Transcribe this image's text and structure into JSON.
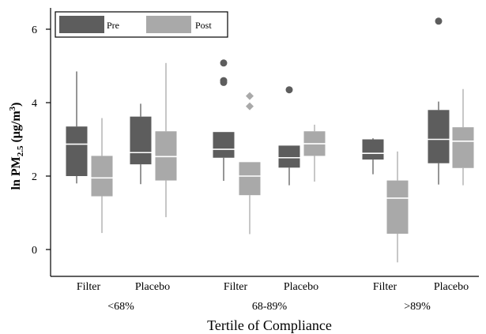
{
  "chart_data": {
    "type": "boxplot",
    "ylabel_main": "ln PM",
    "ylabel_sub": "2.5",
    "ylabel_unit_pre": " (μg/m",
    "ylabel_unit_sup": "3",
    "ylabel_unit_post": ")",
    "xlabel": "Tertile of Compliance",
    "ylim": [
      -0.7,
      6.5
    ],
    "yticks": [
      0,
      2,
      4,
      6
    ],
    "legend": {
      "position": "top-left",
      "entries": [
        {
          "name": "Pre",
          "color": "#5d5d5d"
        },
        {
          "name": "Post",
          "color": "#a9a9a9"
        }
      ]
    },
    "groups": [
      {
        "label": "<68%",
        "treatments": [
          {
            "label": "Filter",
            "pre": {
              "whisker_low": 1.8,
              "q1": 2.0,
              "median": 2.87,
              "q3": 3.35,
              "whisker_high": 4.85,
              "outliers": []
            },
            "post": {
              "whisker_low": 0.45,
              "q1": 1.45,
              "median": 1.95,
              "q3": 2.55,
              "whisker_high": 3.58,
              "outliers": []
            }
          },
          {
            "label": "Placebo",
            "pre": {
              "whisker_low": 1.78,
              "q1": 2.32,
              "median": 2.64,
              "q3": 3.62,
              "whisker_high": 3.97,
              "outliers": []
            },
            "post": {
              "whisker_low": 0.88,
              "q1": 1.88,
              "median": 2.53,
              "q3": 3.22,
              "whisker_high": 5.08,
              "outliers": []
            }
          }
        ]
      },
      {
        "label": "68-89%",
        "treatments": [
          {
            "label": "Filter",
            "pre": {
              "whisker_low": 1.87,
              "q1": 2.5,
              "median": 2.73,
              "q3": 3.2,
              "whisker_high": 3.2,
              "outliers": [
                5.08,
                4.6,
                4.55
              ]
            },
            "post": {
              "whisker_low": 0.42,
              "q1": 1.48,
              "median": 2.0,
              "q3": 2.38,
              "whisker_high": 2.38,
              "outliers": [
                4.18,
                3.9
              ]
            }
          },
          {
            "label": "Placebo",
            "pre": {
              "whisker_low": 1.75,
              "q1": 2.23,
              "median": 2.5,
              "q3": 2.83,
              "whisker_high": 2.83,
              "outliers": [
                4.35
              ]
            },
            "post": {
              "whisker_low": 1.85,
              "q1": 2.55,
              "median": 2.88,
              "q3": 3.22,
              "whisker_high": 3.4,
              "outliers": []
            }
          }
        ]
      },
      {
        "label": ">89%",
        "treatments": [
          {
            "label": "Filter",
            "pre": {
              "whisker_low": 2.05,
              "q1": 2.45,
              "median": 2.62,
              "q3": 3.0,
              "whisker_high": 3.03,
              "outliers": []
            },
            "post": {
              "whisker_low": -0.35,
              "q1": 0.43,
              "median": 1.4,
              "q3": 1.88,
              "whisker_high": 2.67,
              "outliers": []
            }
          },
          {
            "label": "Placebo",
            "pre": {
              "whisker_low": 1.77,
              "q1": 2.35,
              "median": 3.0,
              "q3": 3.8,
              "whisker_high": 4.03,
              "outliers": [
                6.22
              ]
            },
            "post": {
              "whisker_low": 1.75,
              "q1": 2.22,
              "median": 2.95,
              "q3": 3.33,
              "whisker_high": 4.37,
              "outliers": []
            }
          }
        ]
      }
    ]
  }
}
